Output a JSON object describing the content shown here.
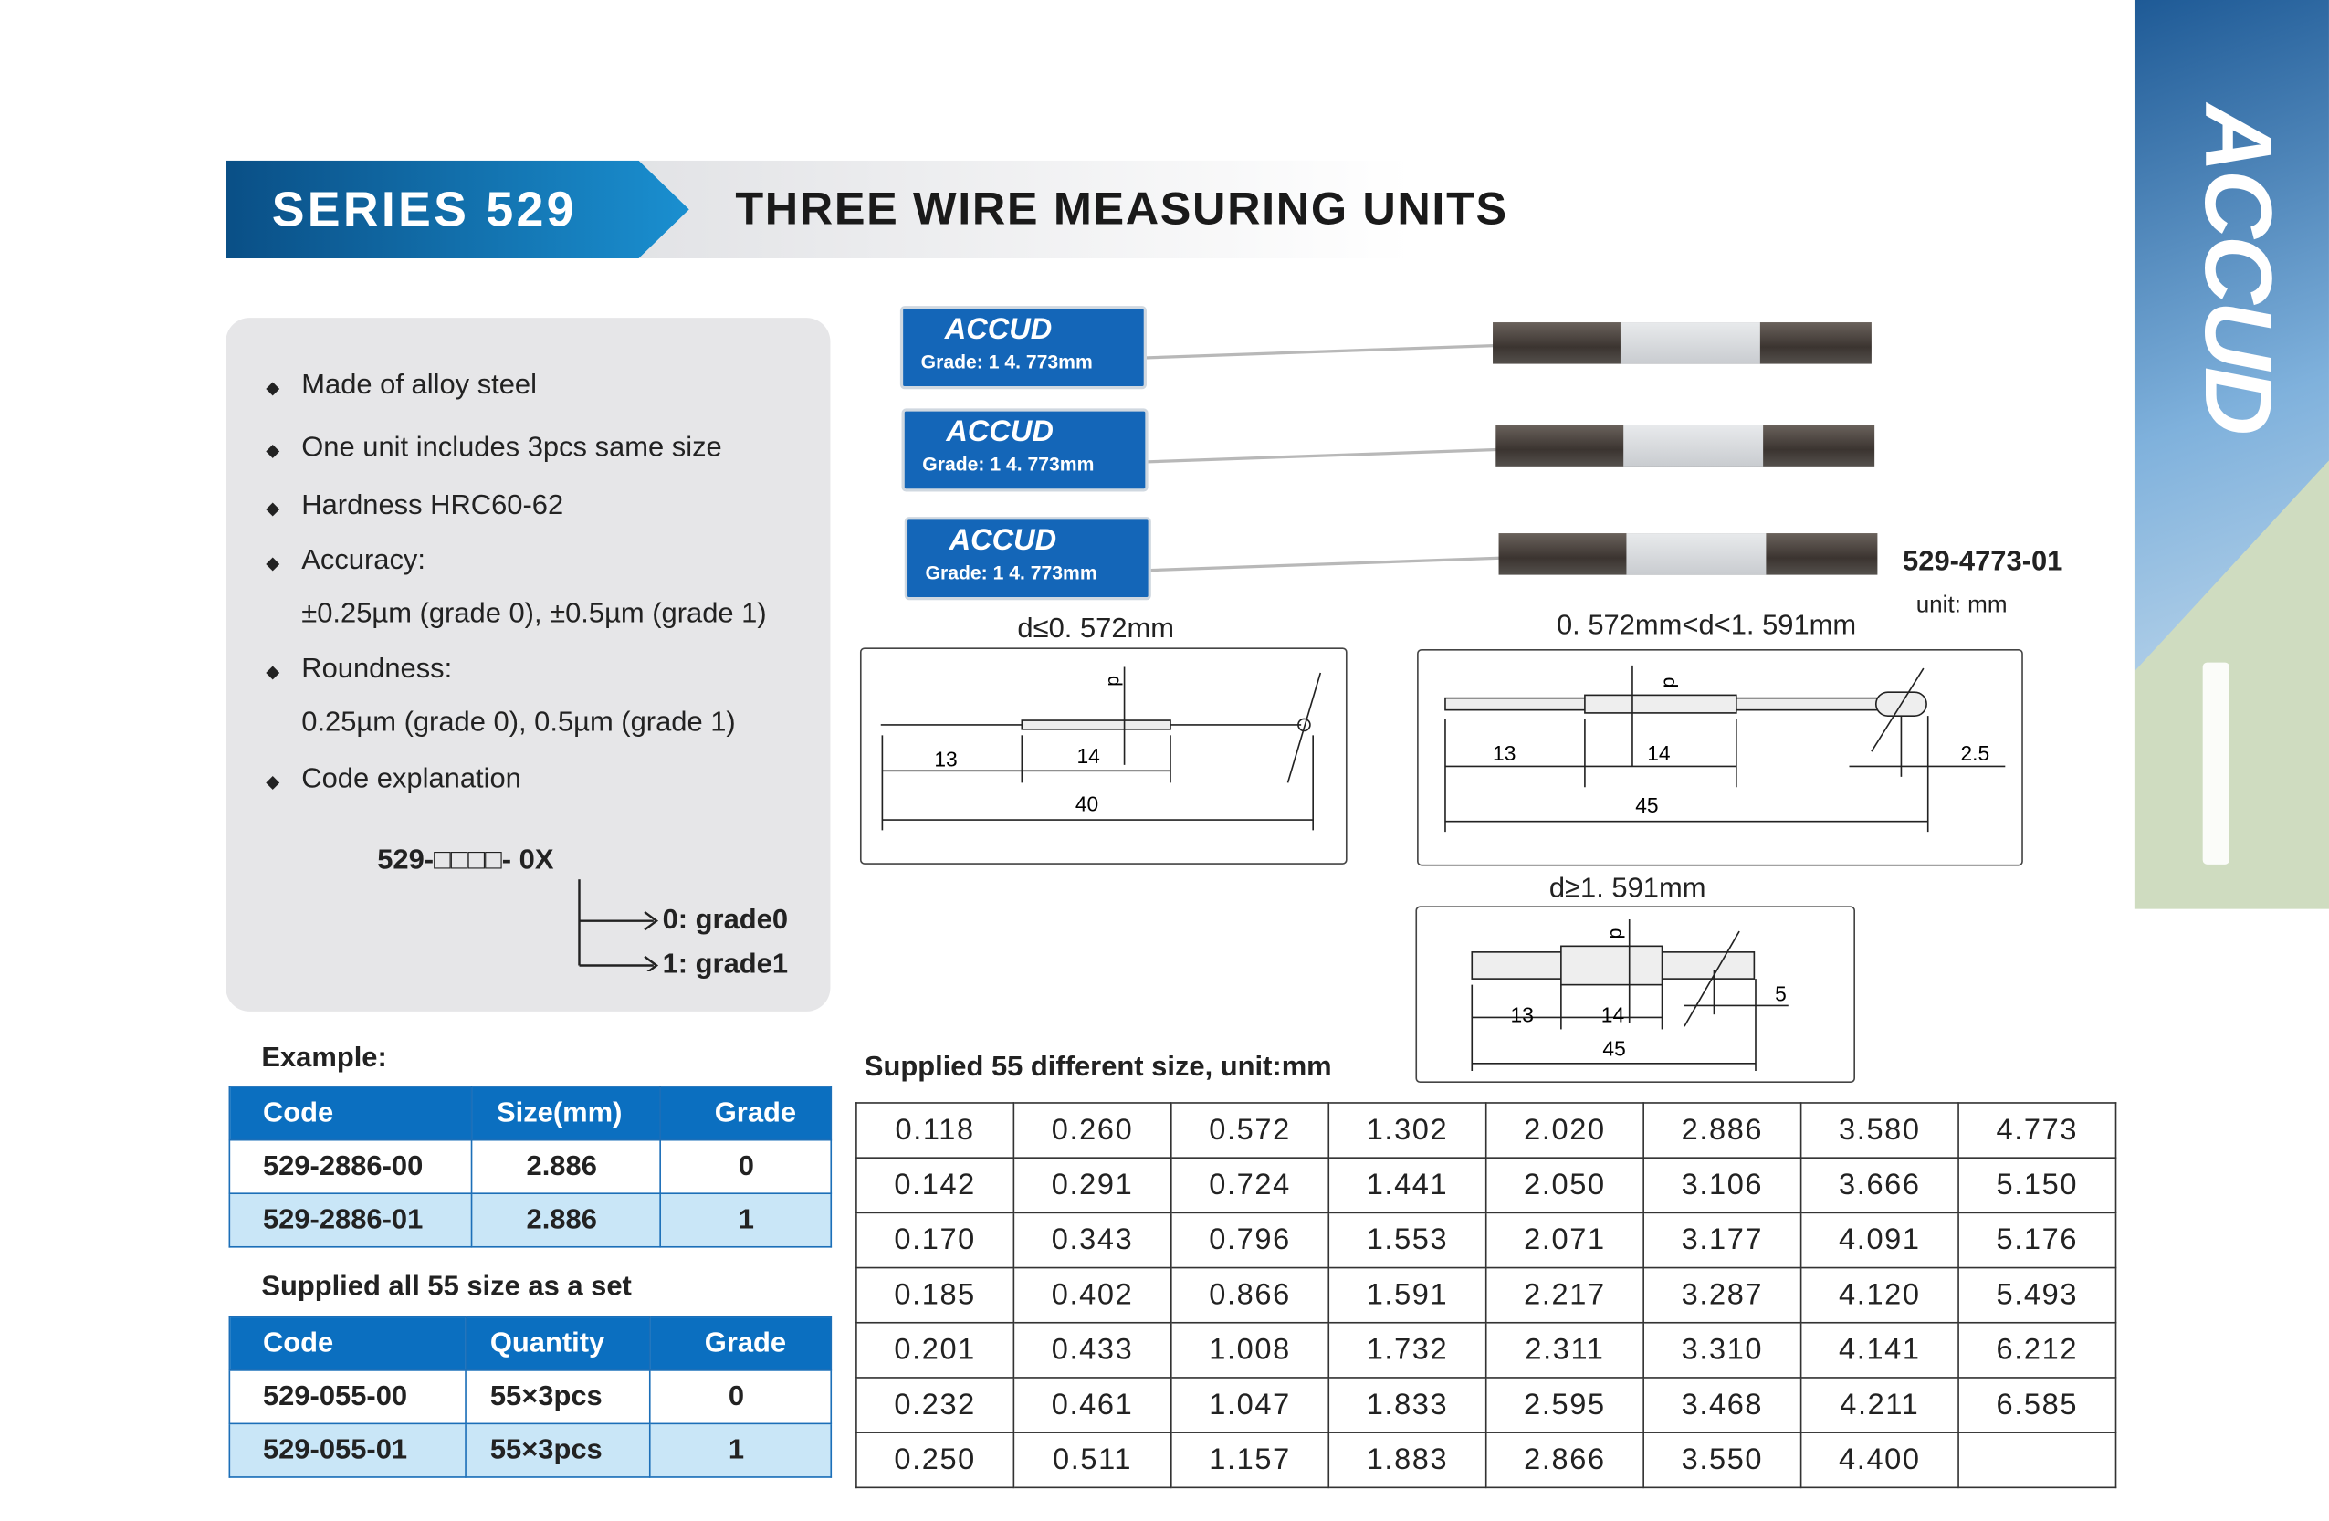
{
  "header": {
    "series": "SERIES 529",
    "title": "THREE WIRE MEASURING UNITS"
  },
  "brand": {
    "logo": "ACCUD",
    "color_primary": "#0b6fc0"
  },
  "features": [
    {
      "text": "Made of alloy steel"
    },
    {
      "text": "One unit includes 3pcs same size"
    },
    {
      "text": "Hardness HRC60-62"
    },
    {
      "text": "Accuracy:",
      "detail": "±0.25µm (grade 0), ±0.5µm (grade 1)"
    },
    {
      "text": "Roundness:",
      "detail": "0.25µm (grade 0), 0.5µm (grade 1)"
    },
    {
      "text": "Code explanation"
    }
  ],
  "code_explanation": {
    "code": "529-□□□□- 0X",
    "options": [
      "0: grade0",
      "1: grade1"
    ]
  },
  "photo": {
    "tags": [
      {
        "logo": "ACCUD",
        "grade": "Grade: 1   4. 773mm"
      },
      {
        "logo": "ACCUD",
        "grade": "Grade: 1   4. 773mm"
      },
      {
        "logo": "ACCUD",
        "grade": "Grade: 1   4. 773mm"
      }
    ],
    "part_number": "529-4773-01",
    "unit": "unit: mm"
  },
  "diagrams": [
    {
      "title": "d≤0. 572mm",
      "dims": [
        "13",
        "14",
        "40"
      ],
      "d": "d"
    },
    {
      "title": "0. 572mm<d<1. 591mm",
      "dims": [
        "13",
        "14",
        "45",
        "2.5"
      ],
      "d": "d"
    },
    {
      "title": "d≥1. 591mm",
      "dims": [
        "13",
        "14",
        "45",
        "5"
      ],
      "d": "d"
    }
  ],
  "example": {
    "label": "Example:",
    "headers": [
      "Code",
      "Size(mm)",
      "Grade"
    ],
    "rows": [
      [
        "529-2886-00",
        "2.886",
        "0"
      ],
      [
        "529-2886-01",
        "2.886",
        "1"
      ]
    ]
  },
  "set": {
    "label": "Supplied all 55 size as a set",
    "headers": [
      "Code",
      "Quantity",
      "Grade"
    ],
    "rows": [
      [
        "529-055-00",
        "55×3pcs",
        "0"
      ],
      [
        "529-055-01",
        "55×3pcs",
        "1"
      ]
    ]
  },
  "sizes": {
    "label": "Supplied 55 different size, unit:mm",
    "rows": [
      [
        "0.118",
        "0.260",
        "0.572",
        "1.302",
        "2.020",
        "2.886",
        "3.580",
        "4.773"
      ],
      [
        "0.142",
        "0.291",
        "0.724",
        "1.441",
        "2.050",
        "3.106",
        "3.666",
        "5.150"
      ],
      [
        "0.170",
        "0.343",
        "0.796",
        "1.553",
        "2.071",
        "3.177",
        "4.091",
        "5.176"
      ],
      [
        "0.185",
        "0.402",
        "0.866",
        "1.591",
        "2.217",
        "3.287",
        "4.120",
        "5.493"
      ],
      [
        "0.201",
        "0.433",
        "1.008",
        "1.732",
        "2.311",
        "3.310",
        "4.141",
        "6.212"
      ],
      [
        "0.232",
        "0.461",
        "1.047",
        "1.833",
        "2.595",
        "3.468",
        "4.211",
        "6.585"
      ],
      [
        "0.250",
        "0.511",
        "1.157",
        "1.883",
        "2.866",
        "3.550",
        "4.400",
        ""
      ]
    ]
  }
}
